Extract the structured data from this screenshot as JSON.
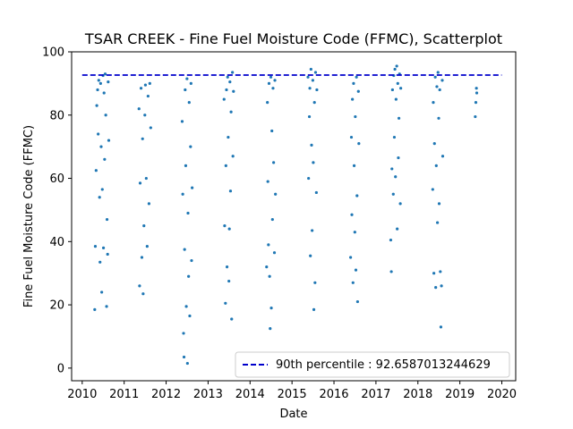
{
  "chart_data": {
    "type": "scatter",
    "title": "TSAR CREEK - Fine Fuel Moisture Code (FFMC), Scatterplot",
    "xlabel": "Date",
    "ylabel": "Fine Fuel Moisture Code (FFMC)",
    "xlim": [
      "2009-10-01",
      "2020-05-01"
    ],
    "ylim": [
      -4,
      100
    ],
    "x_ticks": [
      "2010",
      "2011",
      "2012",
      "2013",
      "2014",
      "2015",
      "2016",
      "2017",
      "2018",
      "2019",
      "2020"
    ],
    "y_ticks": [
      0,
      20,
      40,
      60,
      80,
      100
    ],
    "grid": false,
    "legend_position": "lower-right",
    "marker_color": "#1f77b4",
    "reference_line": {
      "label": "90th percentile : 92.6587013244629",
      "value": 92.6587013244629,
      "color": "#0000cc",
      "style": "dashed",
      "x_range": [
        "2010-01-01",
        "2019-12-31"
      ]
    },
    "series": [
      {
        "points": [
          {
            "x": "2010-04-20",
            "y": 18.5
          },
          {
            "x": "2010-04-25",
            "y": 38.5
          },
          {
            "x": "2010-05-02",
            "y": 62.5
          },
          {
            "x": "2010-05-08",
            "y": 83.0
          },
          {
            "x": "2010-05-15",
            "y": 88.0
          },
          {
            "x": "2010-05-20",
            "y": 74.0
          },
          {
            "x": "2010-05-25",
            "y": 91.0
          },
          {
            "x": "2010-06-01",
            "y": 54.0
          },
          {
            "x": "2010-06-05",
            "y": 33.5
          },
          {
            "x": "2010-06-10",
            "y": 90.0
          },
          {
            "x": "2010-06-15",
            "y": 70.0
          },
          {
            "x": "2010-06-20",
            "y": 24.0
          },
          {
            "x": "2010-06-25",
            "y": 56.5
          },
          {
            "x": "2010-07-01",
            "y": 92.5
          },
          {
            "x": "2010-07-05",
            "y": 38.0
          },
          {
            "x": "2010-07-10",
            "y": 87.0
          },
          {
            "x": "2010-07-15",
            "y": 66.0
          },
          {
            "x": "2010-07-20",
            "y": 93.0
          },
          {
            "x": "2010-07-25",
            "y": 80.0
          },
          {
            "x": "2010-08-01",
            "y": 19.5
          },
          {
            "x": "2010-08-05",
            "y": 47.0
          },
          {
            "x": "2010-08-10",
            "y": 36.0
          },
          {
            "x": "2010-08-15",
            "y": 90.5
          },
          {
            "x": "2010-08-20",
            "y": 72.0
          },
          {
            "x": "2011-05-10",
            "y": 82.0
          },
          {
            "x": "2011-05-15",
            "y": 26.0
          },
          {
            "x": "2011-05-20",
            "y": 58.5
          },
          {
            "x": "2011-05-28",
            "y": 88.5
          },
          {
            "x": "2011-06-04",
            "y": 35.0
          },
          {
            "x": "2011-06-10",
            "y": 72.5
          },
          {
            "x": "2011-06-15",
            "y": 23.5
          },
          {
            "x": "2011-06-22",
            "y": 45.0
          },
          {
            "x": "2011-06-30",
            "y": 80.0
          },
          {
            "x": "2011-07-05",
            "y": 89.5
          },
          {
            "x": "2011-07-12",
            "y": 60.0
          },
          {
            "x": "2011-07-20",
            "y": 38.5
          },
          {
            "x": "2011-07-28",
            "y": 86.0
          },
          {
            "x": "2011-08-05",
            "y": 52.0
          },
          {
            "x": "2011-08-12",
            "y": 90.0
          },
          {
            "x": "2011-08-20",
            "y": 76.0
          },
          {
            "x": "2012-05-20",
            "y": 78.0
          },
          {
            "x": "2012-05-25",
            "y": 55.0
          },
          {
            "x": "2012-06-01",
            "y": 11.0
          },
          {
            "x": "2012-06-05",
            "y": 3.5
          },
          {
            "x": "2012-06-10",
            "y": 37.5
          },
          {
            "x": "2012-06-15",
            "y": 88.0
          },
          {
            "x": "2012-06-20",
            "y": 64.0
          },
          {
            "x": "2012-06-25",
            "y": 19.5
          },
          {
            "x": "2012-07-01",
            "y": 91.5
          },
          {
            "x": "2012-07-05",
            "y": 1.5
          },
          {
            "x": "2012-07-10",
            "y": 49.0
          },
          {
            "x": "2012-07-15",
            "y": 29.0
          },
          {
            "x": "2012-07-20",
            "y": 84.0
          },
          {
            "x": "2012-07-25",
            "y": 16.5
          },
          {
            "x": "2012-08-01",
            "y": 70.0
          },
          {
            "x": "2012-08-05",
            "y": 90.0
          },
          {
            "x": "2012-08-10",
            "y": 34.0
          },
          {
            "x": "2012-08-15",
            "y": 57.0
          },
          {
            "x": "2013-05-20",
            "y": 85.0
          },
          {
            "x": "2013-05-25",
            "y": 45.0
          },
          {
            "x": "2013-06-01",
            "y": 20.5
          },
          {
            "x": "2013-06-05",
            "y": 64.0
          },
          {
            "x": "2013-06-10",
            "y": 88.0
          },
          {
            "x": "2013-06-15",
            "y": 32.0
          },
          {
            "x": "2013-06-20",
            "y": 92.0
          },
          {
            "x": "2013-06-25",
            "y": 73.0
          },
          {
            "x": "2013-07-01",
            "y": 27.5
          },
          {
            "x": "2013-07-05",
            "y": 44.0
          },
          {
            "x": "2013-07-10",
            "y": 90.5
          },
          {
            "x": "2013-07-15",
            "y": 56.0
          },
          {
            "x": "2013-07-20",
            "y": 81.0
          },
          {
            "x": "2013-07-25",
            "y": 15.5
          },
          {
            "x": "2013-08-01",
            "y": 93.5
          },
          {
            "x": "2013-08-05",
            "y": 67.0
          },
          {
            "x": "2013-08-10",
            "y": 87.5
          },
          {
            "x": "2014-05-25",
            "y": 32.0
          },
          {
            "x": "2014-06-01",
            "y": 84.0
          },
          {
            "x": "2014-06-05",
            "y": 59.0
          },
          {
            "x": "2014-06-10",
            "y": 39.0
          },
          {
            "x": "2014-06-15",
            "y": 90.0
          },
          {
            "x": "2014-06-20",
            "y": 29.0
          },
          {
            "x": "2014-06-25",
            "y": 12.5
          },
          {
            "x": "2014-07-01",
            "y": 92.0
          },
          {
            "x": "2014-07-05",
            "y": 19.0
          },
          {
            "x": "2014-07-10",
            "y": 75.0
          },
          {
            "x": "2014-07-15",
            "y": 47.0
          },
          {
            "x": "2014-07-20",
            "y": 88.5
          },
          {
            "x": "2014-07-25",
            "y": 65.0
          },
          {
            "x": "2014-08-01",
            "y": 36.5
          },
          {
            "x": "2014-08-05",
            "y": 91.0
          },
          {
            "x": "2014-08-10",
            "y": 55.0
          },
          {
            "x": "2015-05-20",
            "y": 92.0
          },
          {
            "x": "2015-05-25",
            "y": 60.0
          },
          {
            "x": "2015-06-01",
            "y": 79.5
          },
          {
            "x": "2015-06-05",
            "y": 88.5
          },
          {
            "x": "2015-06-10",
            "y": 35.5
          },
          {
            "x": "2015-06-15",
            "y": 94.5
          },
          {
            "x": "2015-06-20",
            "y": 70.5
          },
          {
            "x": "2015-06-25",
            "y": 43.5
          },
          {
            "x": "2015-07-01",
            "y": 91.0
          },
          {
            "x": "2015-07-05",
            "y": 65.0
          },
          {
            "x": "2015-07-10",
            "y": 18.5
          },
          {
            "x": "2015-07-15",
            "y": 84.0
          },
          {
            "x": "2015-07-20",
            "y": 27.0
          },
          {
            "x": "2015-07-25",
            "y": 93.5
          },
          {
            "x": "2015-08-01",
            "y": 55.5
          },
          {
            "x": "2015-08-05",
            "y": 88.0
          },
          {
            "x": "2016-05-25",
            "y": 35.0
          },
          {
            "x": "2016-06-01",
            "y": 73.0
          },
          {
            "x": "2016-06-05",
            "y": 48.5
          },
          {
            "x": "2016-06-10",
            "y": 85.0
          },
          {
            "x": "2016-06-15",
            "y": 27.0
          },
          {
            "x": "2016-06-20",
            "y": 90.0
          },
          {
            "x": "2016-06-25",
            "y": 64.0
          },
          {
            "x": "2016-07-01",
            "y": 43.0
          },
          {
            "x": "2016-07-05",
            "y": 79.5
          },
          {
            "x": "2016-07-10",
            "y": 31.0
          },
          {
            "x": "2016-07-15",
            "y": 92.0
          },
          {
            "x": "2016-07-20",
            "y": 54.5
          },
          {
            "x": "2016-07-25",
            "y": 21.0
          },
          {
            "x": "2016-08-01",
            "y": 87.5
          },
          {
            "x": "2016-08-05",
            "y": 71.0
          },
          {
            "x": "2017-05-10",
            "y": 40.5
          },
          {
            "x": "2017-05-15",
            "y": 30.5
          },
          {
            "x": "2017-05-20",
            "y": 63.0
          },
          {
            "x": "2017-05-25",
            "y": 88.0
          },
          {
            "x": "2017-06-01",
            "y": 55.0
          },
          {
            "x": "2017-06-05",
            "y": 92.5
          },
          {
            "x": "2017-06-10",
            "y": 73.0
          },
          {
            "x": "2017-06-15",
            "y": 94.5
          },
          {
            "x": "2017-06-20",
            "y": 60.5
          },
          {
            "x": "2017-06-25",
            "y": 85.0
          },
          {
            "x": "2017-07-01",
            "y": 95.5
          },
          {
            "x": "2017-07-05",
            "y": 44.0
          },
          {
            "x": "2017-07-10",
            "y": 90.0
          },
          {
            "x": "2017-07-15",
            "y": 66.5
          },
          {
            "x": "2017-07-20",
            "y": 79.0
          },
          {
            "x": "2017-07-25",
            "y": 93.0
          },
          {
            "x": "2017-08-01",
            "y": 52.0
          },
          {
            "x": "2017-08-05",
            "y": 88.5
          },
          {
            "x": "2018-05-10",
            "y": 56.5
          },
          {
            "x": "2018-05-15",
            "y": 84.0
          },
          {
            "x": "2018-05-20",
            "y": 30.0
          },
          {
            "x": "2018-05-25",
            "y": 71.0
          },
          {
            "x": "2018-06-01",
            "y": 92.0
          },
          {
            "x": "2018-06-05",
            "y": 25.5
          },
          {
            "x": "2018-06-10",
            "y": 64.0
          },
          {
            "x": "2018-06-15",
            "y": 89.0
          },
          {
            "x": "2018-06-20",
            "y": 46.0
          },
          {
            "x": "2018-06-25",
            "y": 93.5
          },
          {
            "x": "2018-07-01",
            "y": 79.0
          },
          {
            "x": "2018-07-05",
            "y": 52.0
          },
          {
            "x": "2018-07-10",
            "y": 88.0
          },
          {
            "x": "2018-07-15",
            "y": 30.5
          },
          {
            "x": "2018-07-20",
            "y": 13.0
          },
          {
            "x": "2018-07-25",
            "y": 26.0
          },
          {
            "x": "2018-08-01",
            "y": 91.0
          },
          {
            "x": "2018-08-05",
            "y": 67.0
          },
          {
            "x": "2019-05-15",
            "y": 79.5
          },
          {
            "x": "2019-05-20",
            "y": 84.0
          },
          {
            "x": "2019-05-25",
            "y": 88.5
          },
          {
            "x": "2019-05-28",
            "y": 87.0
          }
        ]
      }
    ]
  }
}
